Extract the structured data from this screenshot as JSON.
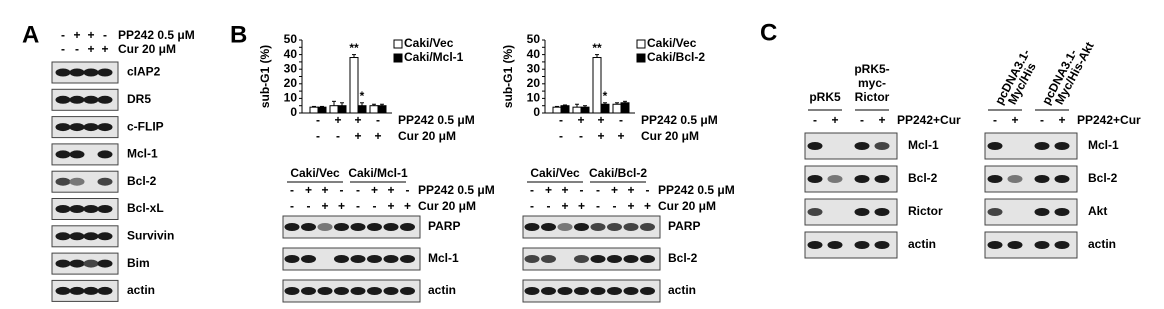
{
  "panel_letters": [
    "A",
    "B",
    "C"
  ],
  "panel_a": {
    "treatments": [
      {
        "label": "PP242 0.5 μM",
        "signs": [
          "-",
          "+",
          "+",
          "-"
        ]
      },
      {
        "label": "Cur 20 μM",
        "signs": [
          "-",
          "-",
          "+",
          "+"
        ]
      }
    ],
    "blots": [
      "cIAP2",
      "DR5",
      "c-FLIP",
      "Mcl-1",
      "Bcl-2",
      "Bcl-xL",
      "Survivin",
      "Bim",
      "actin"
    ]
  },
  "chart_data": [
    {
      "type": "bar",
      "y_label": "sub-G1 (%)",
      "ylim": [
        0,
        50
      ],
      "yticks": [
        0,
        5,
        10,
        15,
        20,
        25,
        30,
        35,
        40,
        45,
        50
      ],
      "series": [
        {
          "name": "Caki/Vec",
          "color": "#ffffff",
          "values": [
            4,
            5,
            38,
            5
          ],
          "errors": [
            0.5,
            3,
            2,
            1
          ],
          "annotations": [
            null,
            null,
            "**",
            null
          ]
        },
        {
          "name": "Caki/Mcl-1",
          "color": "#000000",
          "values": [
            4,
            5,
            5,
            5
          ],
          "errors": [
            0.5,
            2,
            2,
            1
          ],
          "annotations": [
            null,
            null,
            "*",
            null
          ]
        }
      ],
      "treatments": [
        {
          "label": "PP242 0.5 μM",
          "signs": [
            "-",
            "+",
            "+",
            "-"
          ]
        },
        {
          "label": "Cur 20 μM",
          "signs": [
            "-",
            "-",
            "+",
            "+"
          ]
        }
      ]
    },
    {
      "type": "bar",
      "y_label": "sub-G1 (%)",
      "ylim": [
        0,
        50
      ],
      "yticks": [
        0,
        5,
        10,
        15,
        20,
        25,
        30,
        35,
        40,
        45,
        50
      ],
      "series": [
        {
          "name": "Caki/Vec",
          "color": "#ffffff",
          "values": [
            4,
            4,
            38,
            6
          ],
          "errors": [
            0.5,
            2,
            2,
            1
          ],
          "annotations": [
            null,
            null,
            "**",
            null
          ]
        },
        {
          "name": "Caki/Bcl-2",
          "color": "#000000",
          "values": [
            5,
            4,
            6,
            7
          ],
          "errors": [
            0.5,
            1,
            1,
            1
          ],
          "annotations": [
            null,
            null,
            "*",
            null
          ]
        }
      ],
      "treatments": [
        {
          "label": "PP242 0.5 μM",
          "signs": [
            "-",
            "+",
            "+",
            "-"
          ]
        },
        {
          "label": "Cur 20 μM",
          "signs": [
            "-",
            "-",
            "+",
            "+"
          ]
        }
      ]
    }
  ],
  "panel_b_blots": [
    {
      "groups": [
        "Caki/Vec",
        "Caki/Mcl-1"
      ],
      "treatments": [
        {
          "label": "PP242 0.5 μM",
          "signs": [
            "-",
            "+",
            "+",
            "-",
            "-",
            "+",
            "+",
            "-"
          ]
        },
        {
          "label": "Cur 20 μM",
          "signs": [
            "-",
            "-",
            "+",
            "+",
            "-",
            "-",
            "+",
            "+"
          ]
        }
      ],
      "blots": [
        "PARP",
        "Mcl-1",
        "actin"
      ]
    },
    {
      "groups": [
        "Caki/Vec",
        "Caki/Bcl-2"
      ],
      "treatments": [
        {
          "label": "PP242 0.5 μM",
          "signs": [
            "-",
            "+",
            "+",
            "-",
            "-",
            "+",
            "+",
            "-"
          ]
        },
        {
          "label": "Cur 20 μM",
          "signs": [
            "-",
            "-",
            "+",
            "+",
            "-",
            "-",
            "+",
            "+"
          ]
        }
      ],
      "blots": [
        "PARP",
        "Bcl-2",
        "actin"
      ]
    }
  ],
  "panel_c": [
    {
      "groups": [
        [
          "pRK5"
        ],
        [
          "pRK5-",
          "myc-",
          "Rictor"
        ]
      ],
      "rotated_headers": false,
      "treatment": {
        "label": "PP242+Cur",
        "signs": [
          "-",
          "+",
          "-",
          "+"
        ]
      },
      "blots": [
        "Mcl-1",
        "Bcl-2",
        "Rictor",
        "actin"
      ]
    },
    {
      "groups": [
        [
          "pcDNA3.1-",
          "Myc/His"
        ],
        [
          "pcDNA3.1-",
          "Myc/His-Akt"
        ]
      ],
      "rotated_headers": true,
      "treatment": {
        "label": "PP242+Cur",
        "signs": [
          "-",
          "+",
          "-",
          "+"
        ]
      },
      "blots": [
        "Mcl-1",
        "Bcl-2",
        "Akt",
        "actin"
      ]
    }
  ]
}
